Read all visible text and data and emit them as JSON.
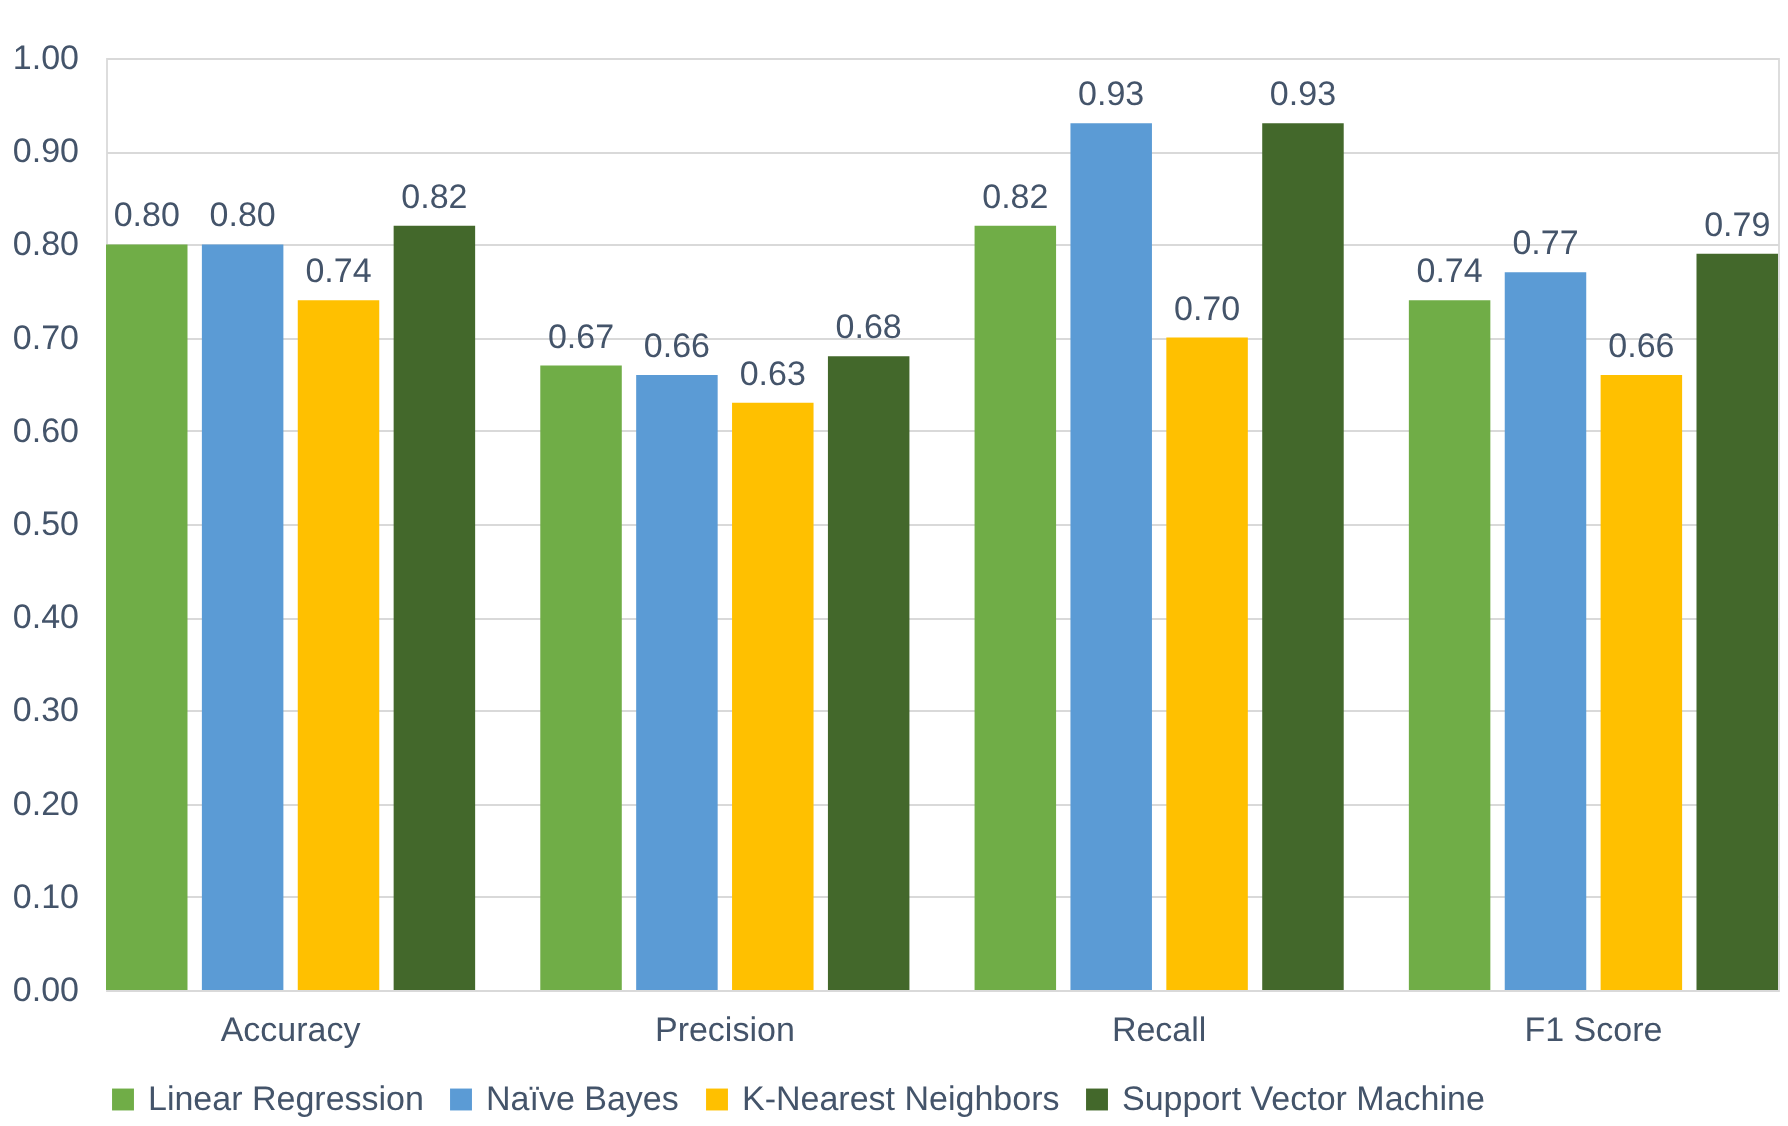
{
  "chart_data": {
    "type": "bar",
    "categories": [
      "Accuracy",
      "Precision",
      "Recall",
      "F1 Score"
    ],
    "series": [
      {
        "name": "Linear Regression",
        "color": "#70ad47",
        "values": [
          0.8,
          0.67,
          0.82,
          0.74
        ],
        "value_labels": [
          "0.80",
          "0.67",
          "0.82",
          "0.74"
        ]
      },
      {
        "name": "Naïve Bayes",
        "color": "#5b9bd5",
        "values": [
          0.8,
          0.66,
          0.93,
          0.77
        ],
        "value_labels": [
          "0.80",
          "0.66",
          "0.93",
          "0.77"
        ]
      },
      {
        "name": "K-Nearest Neighbors",
        "color": "#ffc000",
        "values": [
          0.74,
          0.63,
          0.7,
          0.66
        ],
        "value_labels": [
          "0.74",
          "0.63",
          "0.70",
          "0.66"
        ]
      },
      {
        "name": "Support Vector Machine",
        "color": "#43682b",
        "values": [
          0.82,
          0.68,
          0.93,
          0.79
        ],
        "value_labels": [
          "0.82",
          "0.68",
          "0.93",
          "0.79"
        ]
      }
    ],
    "ylim": [
      0,
      1
    ],
    "yticks": [
      {
        "value": 0,
        "label": "0.00"
      },
      {
        "value": 0.1,
        "label": "0.10"
      },
      {
        "value": 0.2,
        "label": "0.20"
      },
      {
        "value": 0.3,
        "label": "0.30"
      },
      {
        "value": 0.4,
        "label": "0.40"
      },
      {
        "value": 0.5,
        "label": "0.50"
      },
      {
        "value": 0.6,
        "label": "0.60"
      },
      {
        "value": 0.7,
        "label": "0.70"
      },
      {
        "value": 0.8,
        "label": "0.80"
      },
      {
        "value": 0.9,
        "label": "0.90"
      },
      {
        "value": 1,
        "label": "1.00"
      }
    ],
    "grid": "y",
    "legend": "bottom"
  }
}
